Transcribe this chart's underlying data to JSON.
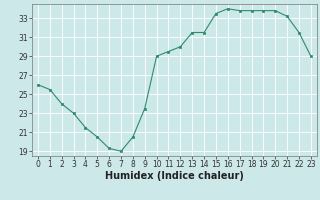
{
  "x": [
    0,
    1,
    2,
    3,
    4,
    5,
    6,
    7,
    8,
    9,
    10,
    11,
    12,
    13,
    14,
    15,
    16,
    17,
    18,
    19,
    20,
    21,
    22,
    23
  ],
  "y": [
    26,
    25.5,
    24,
    23,
    21.5,
    20.5,
    19.3,
    19.0,
    20.5,
    23.5,
    29.0,
    29.5,
    30.0,
    31.5,
    31.5,
    33.5,
    34.0,
    33.8,
    33.8,
    33.8,
    33.8,
    33.2,
    31.5,
    29.0
  ],
  "title": "",
  "xlabel": "Humidex (Indice chaleur)",
  "ylabel": "",
  "xlim": [
    -0.5,
    23.5
  ],
  "ylim": [
    18.5,
    34.5
  ],
  "yticks": [
    19,
    21,
    23,
    25,
    27,
    29,
    31,
    33
  ],
  "xticks": [
    0,
    1,
    2,
    3,
    4,
    5,
    6,
    7,
    8,
    9,
    10,
    11,
    12,
    13,
    14,
    15,
    16,
    17,
    18,
    19,
    20,
    21,
    22,
    23
  ],
  "line_color": "#2e8b6e",
  "marker_color": "#2e8b6e",
  "bg_color": "#cce8e8",
  "grid_color": "#ffffff",
  "tick_label_fontsize": 5.5,
  "xlabel_fontsize": 7.0,
  "xlabel_fontweight": "bold"
}
